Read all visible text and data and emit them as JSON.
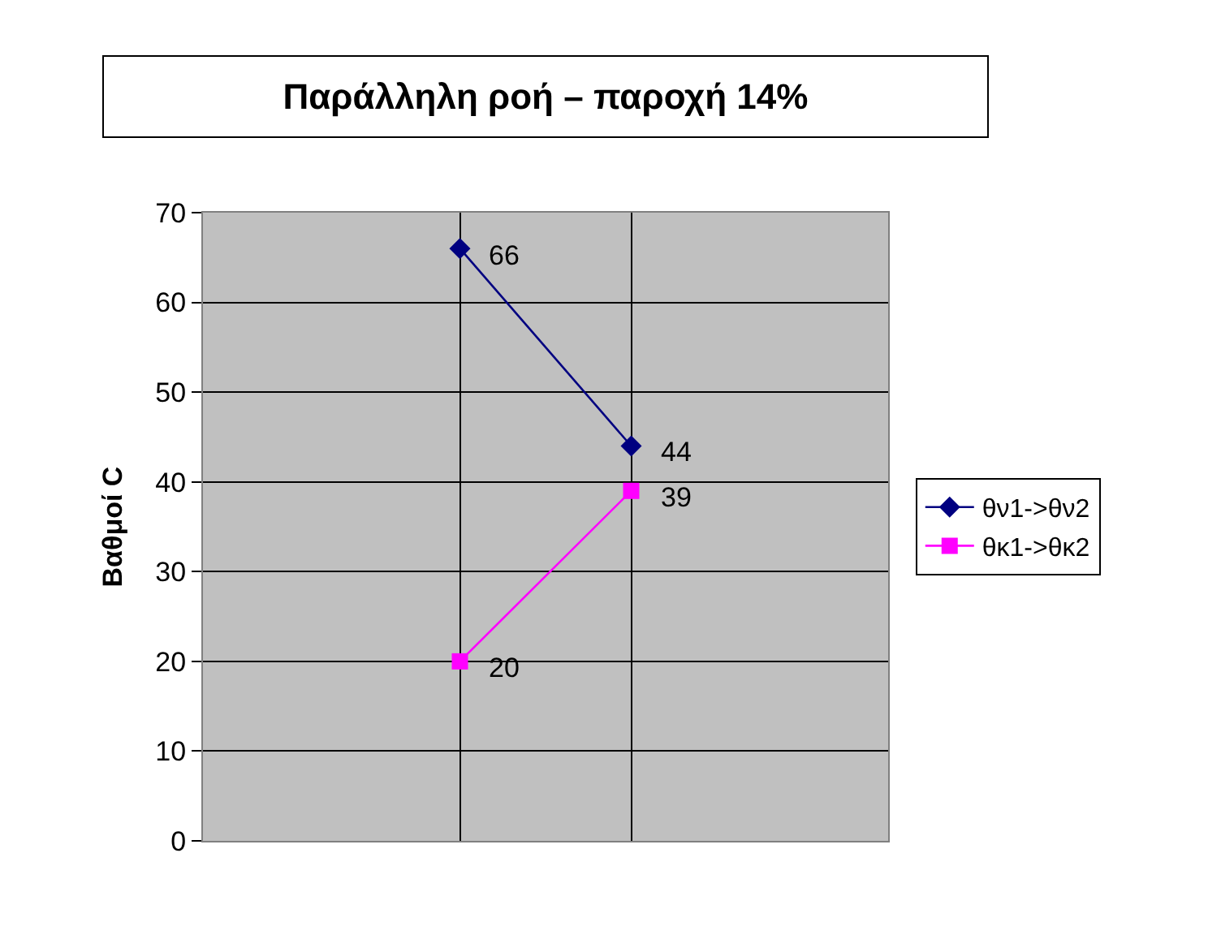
{
  "chart_data": {
    "type": "line",
    "title": "Παράλληλη ροή – παροχή 14%",
    "ylabel": "Βαθμοί C",
    "categories": [
      null,
      null,
      null,
      null
    ],
    "series": [
      {
        "name": "θν1->θν2",
        "color": "#000080",
        "marker": "diamond",
        "values": [
          null,
          66,
          44,
          null
        ]
      },
      {
        "name": "θκ1->θκ2",
        "color": "#ff00ff",
        "marker": "square",
        "values": [
          null,
          20,
          39,
          null
        ]
      }
    ],
    "ylim": [
      0,
      70
    ],
    "yticks": [
      0,
      10,
      20,
      30,
      40,
      50,
      60,
      70
    ],
    "grid": true,
    "legend": "right",
    "data_labels": true,
    "line_style": "solid"
  }
}
